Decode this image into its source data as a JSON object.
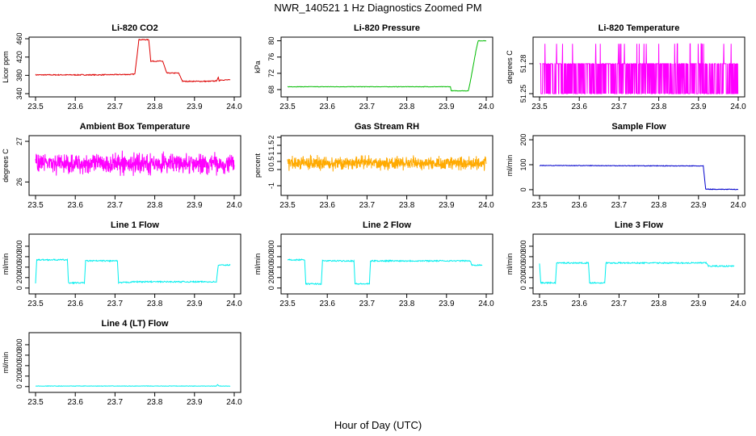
{
  "figure": {
    "title": "NWR_140521  1 Hz Diagnostics Zoomed PM",
    "xlabel": "Hour of Day (UTC)"
  },
  "chart_data": [
    {
      "type": "line",
      "title": "Li-820 CO2",
      "ylabel": "Licor ppm",
      "xlim": [
        23.5,
        24.0
      ],
      "ylim": [
        340,
        460
      ],
      "xticks": [
        "23.5",
        "23.6",
        "23.7",
        "23.8",
        "23.9",
        "24.0"
      ],
      "yticks": [
        340,
        380,
        420,
        460
      ],
      "color": "#dd0000",
      "noise": 1.0,
      "series": [
        {
          "x": [
            23.5,
            23.66,
            23.74,
            23.75,
            23.76,
            23.77,
            23.785,
            23.79,
            23.82,
            23.83,
            23.86,
            23.87,
            23.94,
            23.955,
            23.96,
            23.962,
            23.965,
            23.99
          ],
          "y": [
            381,
            381,
            382,
            383,
            458,
            458,
            458,
            411,
            411,
            385,
            385,
            367,
            367,
            368,
            375,
            368,
            370,
            370
          ]
        }
      ]
    },
    {
      "type": "line",
      "title": "Li-820 Pressure",
      "ylabel": "kPa",
      "xlim": [
        23.5,
        24.0
      ],
      "ylim": [
        67,
        80.5
      ],
      "xticks": [
        "23.5",
        "23.6",
        "23.7",
        "23.8",
        "23.9",
        "24.0"
      ],
      "yticks": [
        68,
        72,
        76,
        80
      ],
      "color": "#00bb00",
      "noise": 0.05,
      "series": [
        {
          "x": [
            23.5,
            23.91,
            23.912,
            23.955,
            23.96,
            23.975,
            23.98,
            24.0
          ],
          "y": [
            68.7,
            68.7,
            67.7,
            67.7,
            70,
            78,
            80,
            80
          ]
        }
      ]
    },
    {
      "type": "line",
      "title": "Li-820 Temperature",
      "ylabel": "degrees C",
      "xlim": [
        23.5,
        24.0
      ],
      "ylim": [
        51.25,
        51.305
      ],
      "xticks": [
        "23.5",
        "23.6",
        "23.7",
        "23.8",
        "23.9",
        "24.0"
      ],
      "yticks": [
        51.25,
        51.28
      ],
      "style": "quantized",
      "levels": [
        51.25,
        51.28,
        51.3
      ],
      "color": "#ff00ff"
    },
    {
      "type": "line",
      "title": "Ambient Box Temperature",
      "ylabel": "degrees C",
      "xlim": [
        23.5,
        24.0
      ],
      "ylim": [
        25.75,
        27.1
      ],
      "xticks": [
        "23.5",
        "23.6",
        "23.7",
        "23.8",
        "23.9",
        "24.0"
      ],
      "yticks": [
        26.0,
        27.0
      ],
      "style": "noise",
      "center": 26.45,
      "amplitude": 0.35,
      "color": "#ff00ff"
    },
    {
      "type": "line",
      "title": "Gas Stream RH",
      "ylabel": "percent",
      "xlim": [
        23.5,
        24.0
      ],
      "ylim": [
        -1.4,
        2.0
      ],
      "xticks": [
        "23.5",
        "23.6",
        "23.7",
        "23.8",
        "23.9",
        "24.0"
      ],
      "yticks": [
        -1.0,
        0.0,
        0.5,
        1.0,
        1.5,
        2.0
      ],
      "style": "noise",
      "center": 0.4,
      "amplitude": 0.6,
      "color": "#ffaa00"
    },
    {
      "type": "line",
      "title": "Sample Flow",
      "ylabel": "ml/min",
      "xlim": [
        23.5,
        24.0
      ],
      "ylim": [
        -10,
        210
      ],
      "xticks": [
        "23.5",
        "23.6",
        "23.7",
        "23.8",
        "23.9",
        "24.0"
      ],
      "yticks": [
        0,
        100,
        200
      ],
      "color": "#0000cc",
      "noise": 1.2,
      "series": [
        {
          "x": [
            23.5,
            23.7,
            23.912,
            23.918,
            24.0
          ],
          "y": [
            97,
            96,
            95,
            2,
            1
          ]
        }
      ]
    },
    {
      "type": "line",
      "title": "Line 1 Flow",
      "ylabel": "ml/min",
      "xlim": [
        23.5,
        24.0
      ],
      "ylim": [
        -50,
        1000
      ],
      "xticks": [
        "23.5",
        "23.6",
        "23.7",
        "23.8",
        "23.9",
        "24.0"
      ],
      "yticks": [
        0,
        200,
        400,
        600,
        800
      ],
      "color": "#00eeee",
      "noise": 12,
      "series": [
        {
          "x": [
            23.5,
            23.503,
            23.58,
            23.583,
            23.623,
            23.626,
            23.706,
            23.709,
            23.75,
            23.955,
            23.96,
            23.99
          ],
          "y": [
            100,
            540,
            540,
            100,
            100,
            520,
            520,
            100,
            120,
            120,
            440,
            440
          ]
        }
      ]
    },
    {
      "type": "line",
      "title": "Line 2 Flow",
      "ylabel": "ml/min",
      "xlim": [
        23.5,
        24.0
      ],
      "ylim": [
        -50,
        1000
      ],
      "xticks": [
        "23.5",
        "23.6",
        "23.7",
        "23.8",
        "23.9",
        "24.0"
      ],
      "yticks": [
        0,
        200,
        400,
        600,
        800
      ],
      "color": "#00eeee",
      "noise": 12,
      "series": [
        {
          "x": [
            23.5,
            23.543,
            23.546,
            23.585,
            23.588,
            23.667,
            23.67,
            23.706,
            23.709,
            23.96,
            23.963,
            23.99
          ],
          "y": [
            540,
            540,
            80,
            80,
            520,
            520,
            80,
            80,
            520,
            520,
            440,
            440
          ]
        }
      ]
    },
    {
      "type": "line",
      "title": "Line 3 Flow",
      "ylabel": "ml/min",
      "xlim": [
        23.5,
        24.0
      ],
      "ylim": [
        -50,
        1000
      ],
      "xticks": [
        "23.5",
        "23.6",
        "23.7",
        "23.8",
        "23.9",
        "24.0"
      ],
      "yticks": [
        0,
        200,
        400,
        600,
        800
      ],
      "color": "#00eeee",
      "noise": 12,
      "series": [
        {
          "x": [
            23.5,
            23.503,
            23.54,
            23.543,
            23.623,
            23.626,
            23.664,
            23.667,
            23.92,
            23.925,
            23.99
          ],
          "y": [
            470,
            100,
            100,
            480,
            480,
            100,
            100,
            480,
            480,
            420,
            420
          ]
        }
      ]
    },
    {
      "type": "line",
      "title": "Line 4 (LT) Flow",
      "ylabel": "ml/min",
      "xlim": [
        23.5,
        24.0
      ],
      "ylim": [
        -50,
        1000
      ],
      "xticks": [
        "23.5",
        "23.6",
        "23.7",
        "23.8",
        "23.9",
        "24.0"
      ],
      "yticks": [
        0,
        200,
        400,
        600,
        800
      ],
      "color": "#00eeee",
      "noise": 4,
      "series": [
        {
          "x": [
            23.5,
            23.955,
            23.958,
            23.961,
            23.99
          ],
          "y": [
            10,
            10,
            40,
            10,
            10
          ]
        }
      ]
    }
  ]
}
